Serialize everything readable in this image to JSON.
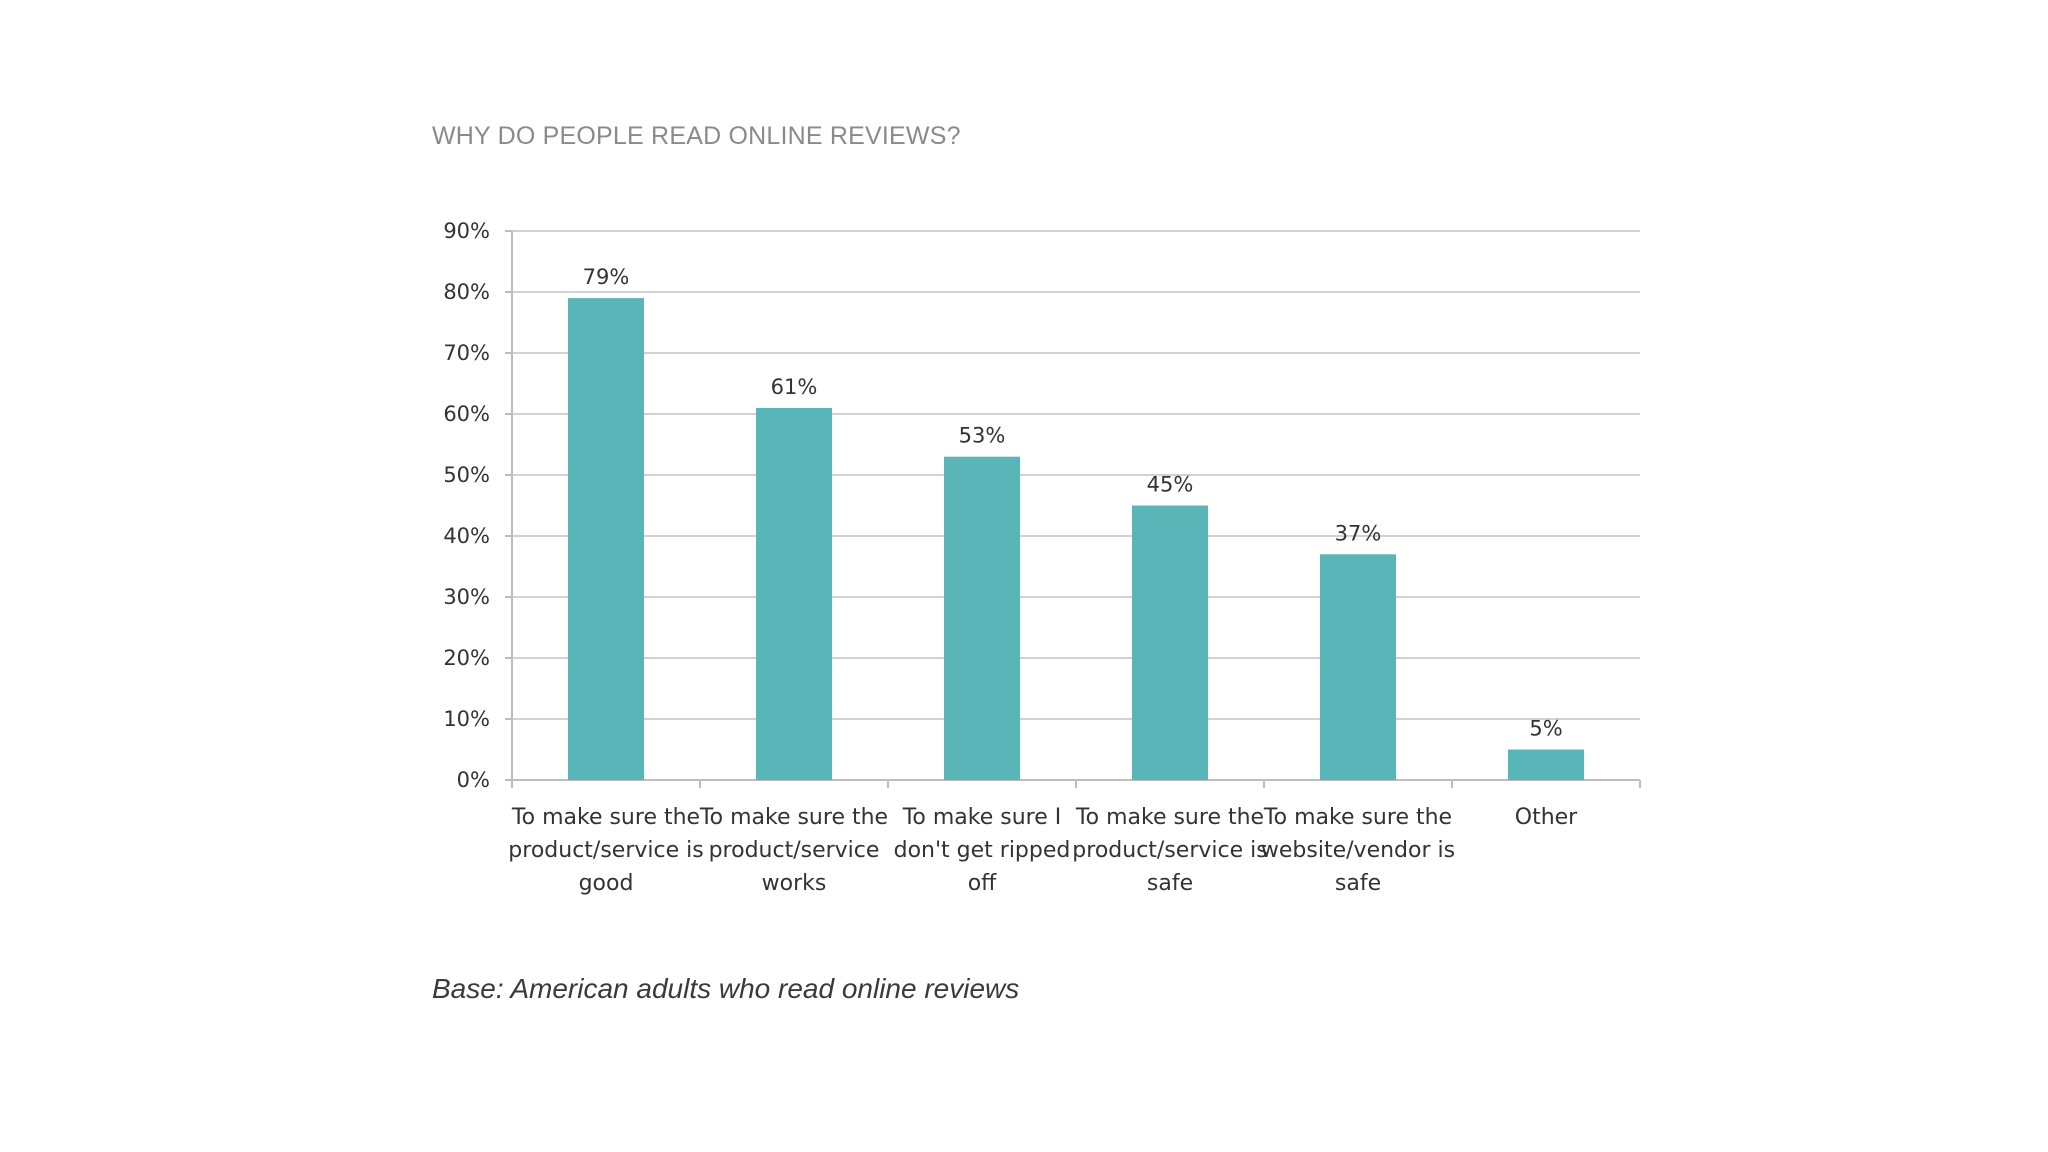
{
  "title": "WHY DO PEOPLE READ ONLINE REVIEWS?",
  "caption": "Base: American adults who read online reviews",
  "colors": {
    "bar": "#5ab5b8",
    "grid": "#d2d2d2",
    "axis": "#bdbdbd"
  },
  "chart_data": {
    "type": "bar",
    "title": "WHY DO PEOPLE READ ONLINE REVIEWS?",
    "xlabel": "",
    "ylabel": "",
    "ylim": [
      0,
      90
    ],
    "ytick_step": 10,
    "ytick_format": "percent",
    "grid": true,
    "categories": [
      [
        "To make sure the",
        "product/service is",
        "good"
      ],
      [
        "To make sure the",
        "product/service",
        "works"
      ],
      [
        "To make sure I",
        "don't get ripped",
        "off"
      ],
      [
        "To make sure the",
        "product/service is",
        "safe"
      ],
      [
        "To make sure the",
        "website/vendor is",
        "safe"
      ],
      [
        "Other"
      ]
    ],
    "values": [
      79,
      61,
      53,
      45,
      37,
      5
    ],
    "data_labels": [
      "79%",
      "61%",
      "53%",
      "45%",
      "37%",
      "5%"
    ],
    "yticks": [
      "0%",
      "10%",
      "20%",
      "30%",
      "40%",
      "50%",
      "60%",
      "70%",
      "80%",
      "90%"
    ]
  }
}
